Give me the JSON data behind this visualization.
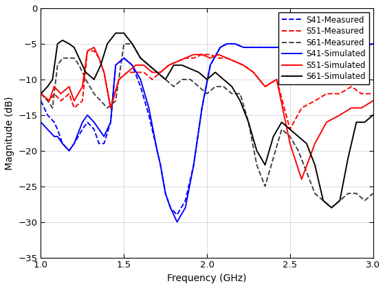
{
  "xlabel": "Frequency (GHz)",
  "ylabel": "Magnitude (dB)",
  "xlim": [
    1,
    3
  ],
  "ylim": [
    -35,
    0
  ],
  "xticks": [
    1.0,
    1.5,
    2.0,
    2.5,
    3.0
  ],
  "yticks": [
    0,
    -5,
    -10,
    -15,
    -20,
    -25,
    -30,
    -35
  ],
  "grid": true,
  "legend_labels": [
    "S41-Measured",
    "S51-Measured",
    "S61-Measured",
    "S41-Simulated",
    "S51-Simulated",
    "S61-Simulated"
  ],
  "lines": {
    "S41_Measured": {
      "color": "#0000FF",
      "linestyle": "--",
      "linewidth": 1.4,
      "x": [
        1.0,
        1.04,
        1.08,
        1.1,
        1.13,
        1.17,
        1.2,
        1.25,
        1.28,
        1.32,
        1.35,
        1.38,
        1.42,
        1.45,
        1.5,
        1.55,
        1.6,
        1.65,
        1.7,
        1.72,
        1.75,
        1.78,
        1.82,
        1.87,
        1.92,
        1.97,
        2.02,
        2.08,
        2.12,
        2.17,
        2.22,
        2.27,
        2.32,
        2.37,
        2.42,
        2.5,
        2.6,
        2.7,
        2.8,
        2.9,
        3.0
      ],
      "y": [
        -13,
        -15,
        -16,
        -17,
        -19,
        -20,
        -19,
        -17,
        -16,
        -17,
        -19,
        -19,
        -16,
        -8,
        -7,
        -8,
        -11,
        -15,
        -20,
        -22,
        -26,
        -28,
        -29,
        -27,
        -22,
        -14,
        -8,
        -5.5,
        -5,
        -5,
        -5.5,
        -5.5,
        -5.5,
        -5.5,
        -5.5,
        -5.5,
        -5.5,
        -5.5,
        -5.5,
        -5.5,
        -5
      ]
    },
    "S51_Measured": {
      "color": "#FF0000",
      "linestyle": "--",
      "linewidth": 1.4,
      "x": [
        1.0,
        1.05,
        1.08,
        1.12,
        1.17,
        1.2,
        1.25,
        1.28,
        1.32,
        1.35,
        1.38,
        1.42,
        1.47,
        1.52,
        1.57,
        1.62,
        1.67,
        1.72,
        1.77,
        1.82,
        1.87,
        1.92,
        1.97,
        2.02,
        2.07,
        2.12,
        2.17,
        2.22,
        2.28,
        2.35,
        2.42,
        2.5,
        2.57,
        2.65,
        2.72,
        2.8,
        2.87,
        2.93,
        3.0
      ],
      "y": [
        -12,
        -13,
        -12,
        -13,
        -12,
        -14,
        -13,
        -6,
        -6,
        -7,
        -9,
        -14,
        -10,
        -9,
        -9,
        -9,
        -10,
        -9,
        -8,
        -7.5,
        -7,
        -7,
        -6.5,
        -6.5,
        -7,
        -7,
        -7.5,
        -8,
        -9,
        -11,
        -10,
        -17,
        -14,
        -13,
        -12,
        -12,
        -11,
        -12,
        -12
      ]
    },
    "S61_Measured": {
      "color": "#404040",
      "linestyle": "--",
      "linewidth": 1.4,
      "x": [
        1.0,
        1.04,
        1.07,
        1.1,
        1.13,
        1.17,
        1.2,
        1.23,
        1.27,
        1.32,
        1.36,
        1.4,
        1.45,
        1.5,
        1.55,
        1.6,
        1.65,
        1.7,
        1.75,
        1.8,
        1.85,
        1.9,
        1.95,
        2.0,
        2.05,
        2.1,
        2.15,
        2.2,
        2.25,
        2.3,
        2.35,
        2.4,
        2.45,
        2.5,
        2.55,
        2.6,
        2.65,
        2.7,
        2.75,
        2.8,
        2.85,
        2.9,
        2.95,
        3.0
      ],
      "y": [
        -12,
        -13,
        -14,
        -8,
        -7,
        -7,
        -7,
        -8,
        -10,
        -12,
        -13,
        -14,
        -13,
        -5,
        -5,
        -7,
        -8,
        -9,
        -10,
        -11,
        -10,
        -10,
        -11,
        -12,
        -11,
        -11,
        -12,
        -12,
        -16,
        -22,
        -25,
        -21,
        -17,
        -18,
        -20,
        -23,
        -26,
        -27,
        -28,
        -27,
        -26,
        -26,
        -27,
        -26
      ]
    },
    "S41_Simulated": {
      "color": "#0000FF",
      "linestyle": "-",
      "linewidth": 1.4,
      "x": [
        1.0,
        1.04,
        1.08,
        1.1,
        1.13,
        1.17,
        1.2,
        1.25,
        1.28,
        1.32,
        1.35,
        1.38,
        1.42,
        1.45,
        1.5,
        1.55,
        1.6,
        1.65,
        1.7,
        1.72,
        1.75,
        1.78,
        1.82,
        1.87,
        1.92,
        1.97,
        2.02,
        2.08,
        2.12,
        2.17,
        2.22,
        2.27,
        2.32,
        2.37,
        2.42,
        2.5,
        2.6,
        2.7,
        2.8,
        2.9,
        3.0
      ],
      "y": [
        -16,
        -17,
        -18,
        -18,
        -19,
        -20,
        -19,
        -16,
        -15,
        -16,
        -17,
        -18,
        -16,
        -8,
        -7,
        -8,
        -10,
        -14,
        -20,
        -22,
        -26,
        -28,
        -30,
        -28,
        -22,
        -14,
        -8,
        -5.5,
        -5,
        -5,
        -5.5,
        -5.5,
        -5.5,
        -5.5,
        -5.5,
        -5.5,
        -5.5,
        -5.5,
        -5.5,
        -5.5,
        -5
      ]
    },
    "S51_Simulated": {
      "color": "#FF0000",
      "linestyle": "-",
      "linewidth": 1.4,
      "x": [
        1.0,
        1.05,
        1.08,
        1.12,
        1.17,
        1.2,
        1.25,
        1.28,
        1.32,
        1.35,
        1.38,
        1.42,
        1.47,
        1.52,
        1.57,
        1.62,
        1.67,
        1.72,
        1.77,
        1.82,
        1.87,
        1.92,
        1.97,
        2.02,
        2.07,
        2.12,
        2.17,
        2.22,
        2.28,
        2.35,
        2.42,
        2.5,
        2.57,
        2.65,
        2.72,
        2.8,
        2.87,
        2.93,
        3.0
      ],
      "y": [
        -12,
        -13,
        -11,
        -12,
        -11,
        -13,
        -11,
        -6,
        -5.5,
        -7,
        -9,
        -14,
        -10,
        -9,
        -8,
        -8,
        -9,
        -9,
        -8,
        -7.5,
        -7,
        -6.5,
        -6.5,
        -7,
        -6.5,
        -7,
        -7.5,
        -8,
        -9,
        -11,
        -10,
        -19,
        -24,
        -19,
        -16,
        -15,
        -14,
        -14,
        -13
      ]
    },
    "S61_Simulated": {
      "color": "#000000",
      "linestyle": "-",
      "linewidth": 1.4,
      "x": [
        1.0,
        1.04,
        1.07,
        1.1,
        1.13,
        1.17,
        1.2,
        1.23,
        1.27,
        1.32,
        1.36,
        1.4,
        1.45,
        1.5,
        1.55,
        1.6,
        1.65,
        1.7,
        1.75,
        1.8,
        1.85,
        1.9,
        1.95,
        2.0,
        2.05,
        2.1,
        2.15,
        2.2,
        2.25,
        2.3,
        2.35,
        2.4,
        2.45,
        2.5,
        2.55,
        2.6,
        2.65,
        2.7,
        2.75,
        2.8,
        2.85,
        2.9,
        2.95,
        3.0
      ],
      "y": [
        -12,
        -11,
        -10,
        -5,
        -4.5,
        -5,
        -5.5,
        -7,
        -9,
        -10,
        -8,
        -5,
        -3.5,
        -3.5,
        -5,
        -7,
        -8,
        -9,
        -10,
        -8,
        -8,
        -8.5,
        -9,
        -10,
        -9,
        -10,
        -11,
        -13,
        -16,
        -20,
        -22,
        -18,
        -16,
        -17,
        -18,
        -19,
        -22,
        -27,
        -28,
        -27,
        -21,
        -16,
        -16,
        -15
      ]
    }
  },
  "bg_color": "#ffffff",
  "legend_fontsize": 8.5,
  "axis_fontsize": 10
}
